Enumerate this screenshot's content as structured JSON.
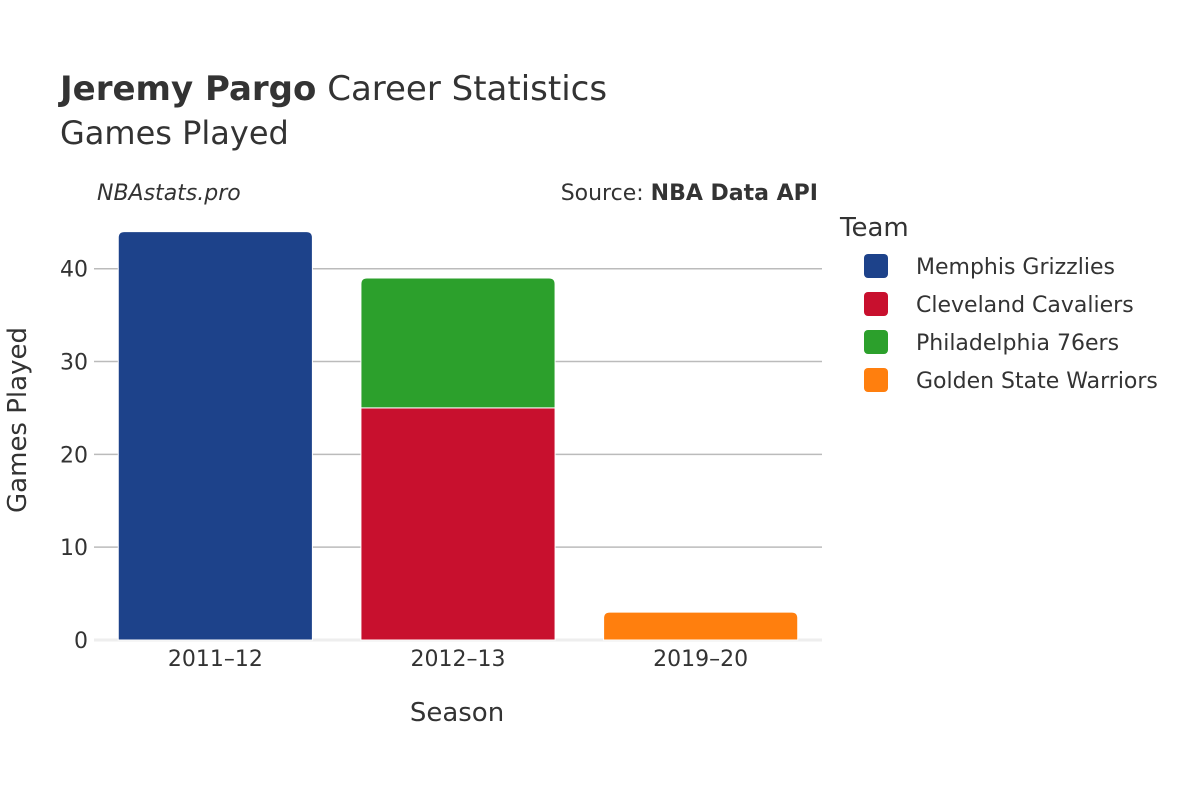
{
  "header": {
    "player_name": "Jeremy Pargo",
    "title_suffix": "Career Statistics",
    "subtitle": "Games Played"
  },
  "watermark": "NBAstats.pro",
  "source": {
    "label": "Source: ",
    "value": "NBA Data API"
  },
  "legend": {
    "title": "Team"
  },
  "chart_data": {
    "type": "bar",
    "stacked": true,
    "title": "Jeremy Pargo Career Statistics",
    "subtitle": "Games Played",
    "xlabel": "Season",
    "ylabel": "Games Played",
    "categories": [
      "2011–12",
      "2012–13",
      "2019–20"
    ],
    "ylim": [
      0,
      46
    ],
    "yticks": [
      0,
      10,
      20,
      30,
      40
    ],
    "grid": true,
    "legend_position": "right",
    "series": [
      {
        "name": "Memphis Grizzlies",
        "color": "#1d428a",
        "values": [
          44,
          0,
          0
        ]
      },
      {
        "name": "Cleveland Cavaliers",
        "color": "#c8102e",
        "values": [
          0,
          25,
          0
        ]
      },
      {
        "name": "Philadelphia 76ers",
        "color": "#2ca02c",
        "values": [
          0,
          14,
          0
        ]
      },
      {
        "name": "Golden State Warriors",
        "color": "#ff7f0e",
        "values": [
          0,
          0,
          3
        ]
      }
    ]
  }
}
